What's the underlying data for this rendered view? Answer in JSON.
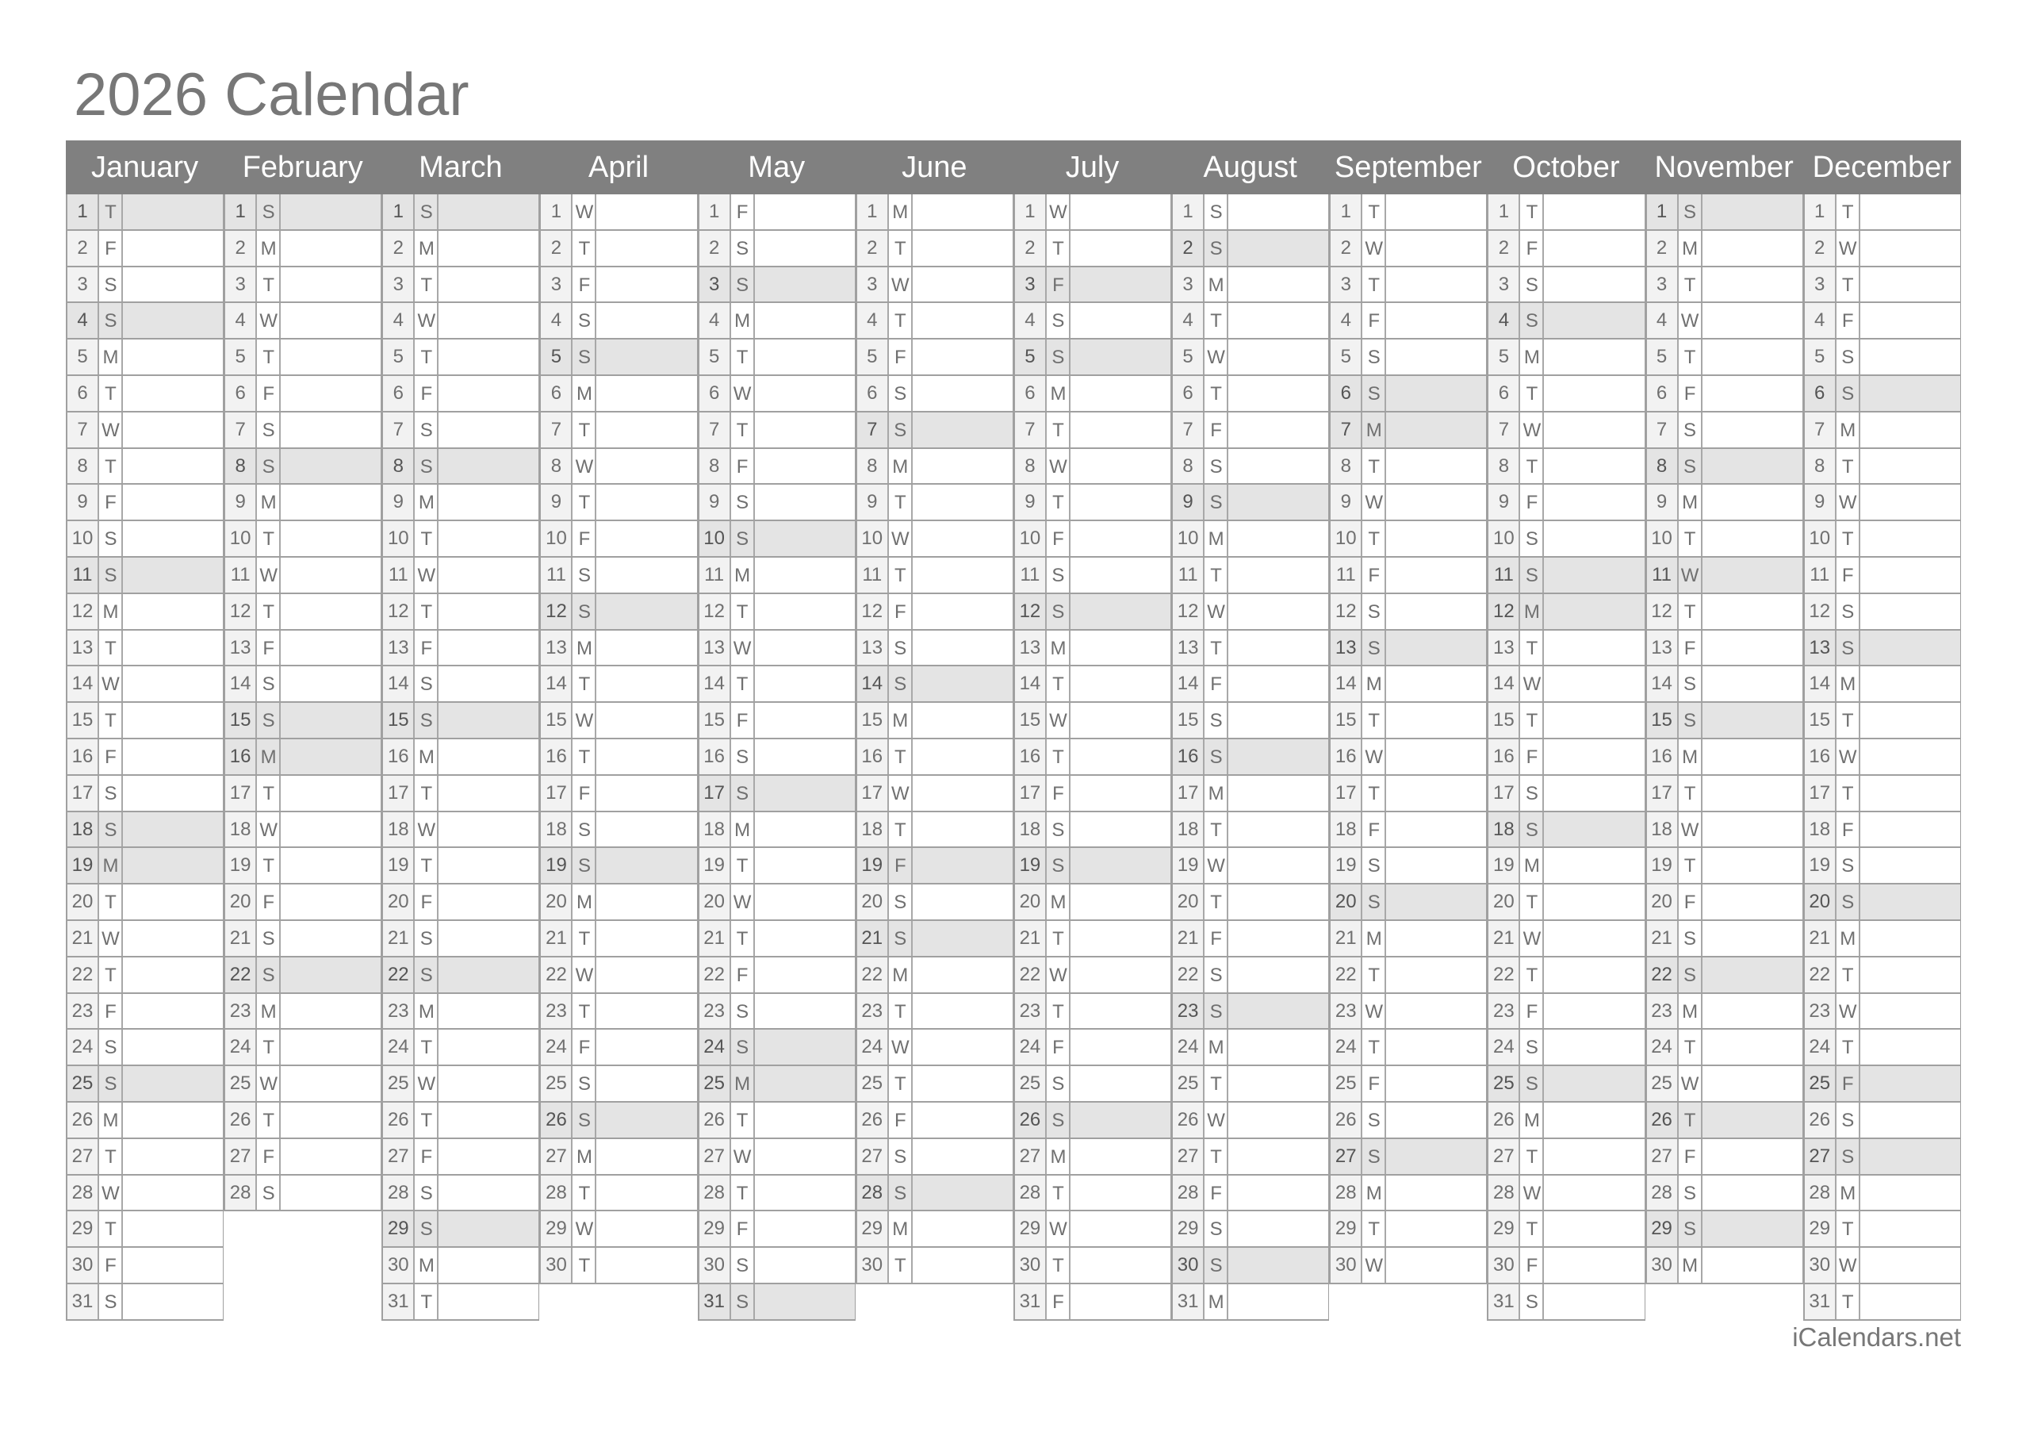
{
  "title": "2026 Calendar",
  "footer": "iCalendars.net",
  "colors": {
    "header": "#808080",
    "highlight": "#e4e4e4",
    "number_cell": "#f2f2f2",
    "text": "#707070"
  },
  "months": [
    {
      "name": "January",
      "weekdays": "TFSSMTWTFSSMTWTFSSMTWTFSSMTWTFS",
      "highlighted": [
        1,
        4,
        11,
        18,
        19,
        25
      ]
    },
    {
      "name": "February",
      "weekdays": "SMTWTFSSMTWTFSSMTWTFSSMTWTFS",
      "highlighted": [
        1,
        8,
        15,
        16,
        22
      ]
    },
    {
      "name": "March",
      "weekdays": "SMTWTFSSMTWTFSSMTWTFSSMTWTFSSMT",
      "highlighted": [
        1,
        8,
        15,
        22,
        29
      ]
    },
    {
      "name": "April",
      "weekdays": "WTFSSMTWTFSSMTWTFSSMTWTFSSMTWT",
      "highlighted": [
        5,
        12,
        19,
        26
      ]
    },
    {
      "name": "May",
      "weekdays": "FSSMTWTFSSMTWTFSSMTWTFSSMTWTFSS",
      "highlighted": [
        3,
        10,
        17,
        24,
        25,
        31
      ]
    },
    {
      "name": "June",
      "weekdays": "MTWTFSSMTWTFSSMTWTFSSMTWTFSSMT",
      "highlighted": [
        7,
        14,
        19,
        21,
        28
      ]
    },
    {
      "name": "July",
      "weekdays": "WTFSSMTWTFSSMTWTFSSMTWTFSSMTWTF",
      "highlighted": [
        3,
        5,
        12,
        19,
        26
      ]
    },
    {
      "name": "August",
      "weekdays": "SSMTWTFSSMTWTFSSMTWTFSSMTWTFSSM",
      "highlighted": [
        2,
        9,
        16,
        23,
        30
      ]
    },
    {
      "name": "September",
      "weekdays": "TWTFSSMTWTFSSMTWTFSSMTWTFSSMTW",
      "highlighted": [
        6,
        7,
        13,
        20,
        27
      ]
    },
    {
      "name": "October",
      "weekdays": "TFSSMTWTFSSMTWTFSSMTWTFSSMTWTFS",
      "highlighted": [
        4,
        11,
        12,
        18,
        25
      ]
    },
    {
      "name": "November",
      "weekdays": "SMTWTFSSMTWTFSSMTWTFSSMTWTFSSM",
      "highlighted": [
        1,
        8,
        11,
        15,
        22,
        26,
        29
      ]
    },
    {
      "name": "December",
      "weekdays": "TWTFSSMTWTFSSMTWTFSSMTWTFSSMTWT",
      "highlighted": [
        6,
        13,
        20,
        25,
        27
      ]
    }
  ]
}
